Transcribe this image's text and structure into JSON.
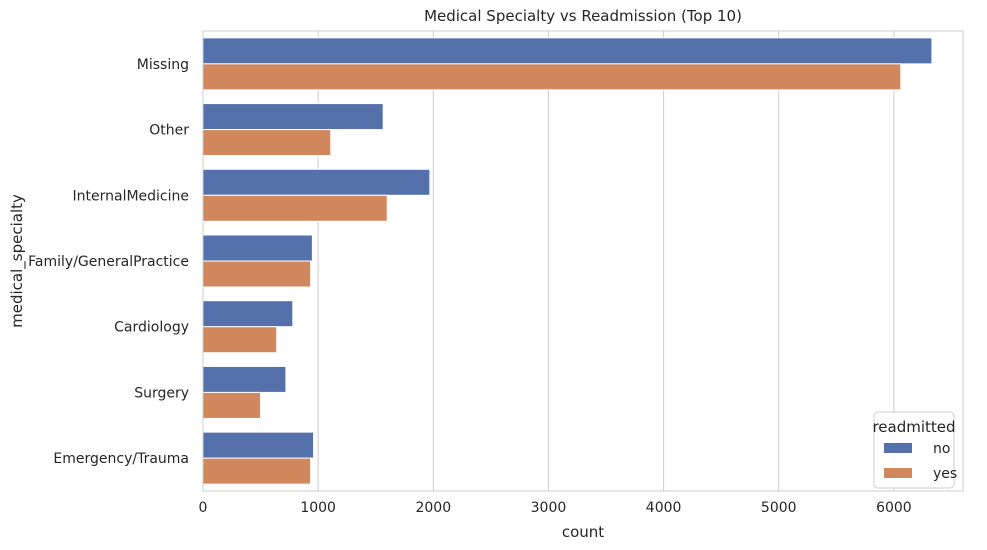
{
  "chart_data": {
    "type": "bar",
    "orientation": "horizontal",
    "title": "Medical Specialty vs Readmission (Top 10)",
    "xlabel": "count",
    "ylabel": "medical_specialty",
    "xlim": [
      0,
      6600
    ],
    "xticks": [
      0,
      1000,
      2000,
      3000,
      4000,
      5000,
      6000
    ],
    "grid": "vertical",
    "legend_position": "bottom-right",
    "legend_title": "readmitted",
    "categories": [
      "Missing",
      "Other",
      "InternalMedicine",
      "Family/GeneralPractice",
      "Cardiology",
      "Surgery",
      "Emergency/Trauma"
    ],
    "series": [
      {
        "name": "no",
        "color": "#5471ab",
        "values": [
          6330,
          1565,
          1970,
          950,
          780,
          720,
          960
        ]
      },
      {
        "name": "yes",
        "color": "#d1885c",
        "values": [
          6060,
          1110,
          1600,
          935,
          640,
          500,
          935
        ]
      }
    ]
  }
}
